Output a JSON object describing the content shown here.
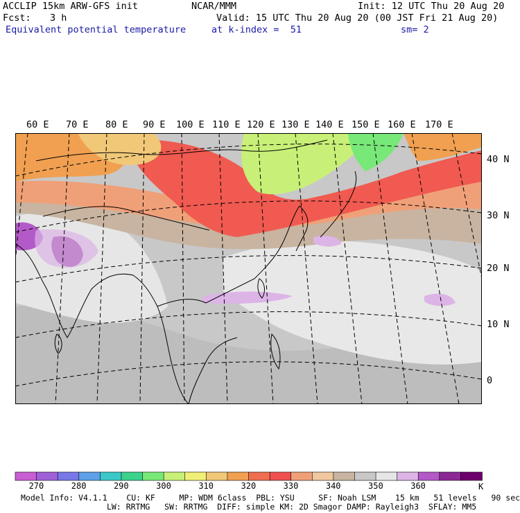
{
  "header": {
    "model": "ACCLIP 15km ARW-GFS init",
    "center": "NCAR/MMM",
    "init": "Init: 12 UTC Thu 20 Aug 20",
    "fcst_label": "Fcst:",
    "fcst_value": "3 h",
    "valid": "Valid: 15 UTC Thu 20 Aug 20 (00 JST Fri 21 Aug 20)",
    "field": "Equivalent potential temperature",
    "level": "at k-index =  51",
    "smooth": "sm= 2"
  },
  "map": {
    "lon_labels": [
      "60 E",
      "70 E",
      "80 E",
      "90 E",
      "100 E",
      "110 E",
      "120 E",
      "130 E",
      "140 E",
      "150 E",
      "160 E",
      "170 E"
    ],
    "lat_labels": [
      "40 N",
      "30 N",
      "20 N",
      "10 N",
      "0"
    ]
  },
  "colorbar": {
    "unit": "K",
    "labels": [
      "270",
      "280",
      "290",
      "300",
      "310",
      "320",
      "330",
      "340",
      "350",
      "360"
    ],
    "colors": [
      "#c85fd2",
      "#a060d8",
      "#7878e8",
      "#5fa0e8",
      "#3cc8c8",
      "#3cd28c",
      "#78e878",
      "#c8f078",
      "#f0f078",
      "#f0c878",
      "#f0a050",
      "#f06e50",
      "#f05050",
      "#f0a078",
      "#f0c8a0",
      "#c8b4a0",
      "#c8c8c8",
      "#e6e6e6",
      "#dcb4e6",
      "#b45ac8",
      "#8c2896",
      "#6e006e"
    ]
  },
  "footer": {
    "line1": "Model Info: V4.1.1    CU: KF     MP: WDM 6class  PBL: YSU     SF: Noah LSM    15 km   51 levels   90 sec",
    "line2": "LW: RRTMG   SW: RRTMG  DIFF: simple KM: 2D Smagor DAMP: Rayleigh3  SFLAY: MM5"
  }
}
